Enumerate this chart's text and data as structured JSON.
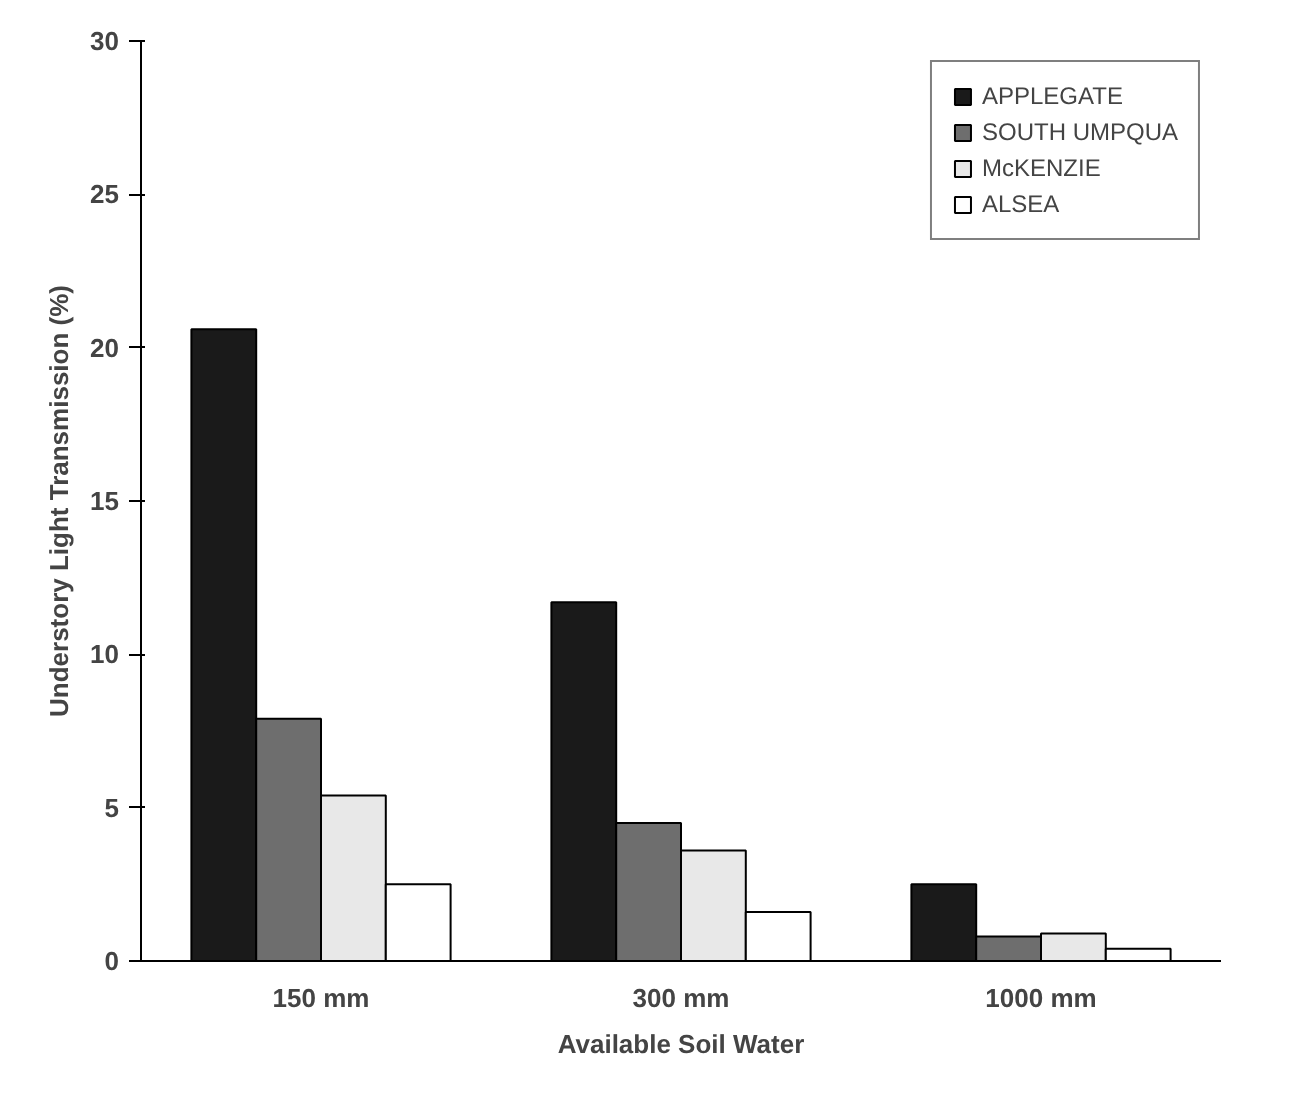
{
  "chart_data": {
    "type": "bar",
    "xlabel": "Available Soil Water",
    "ylabel": "Understory Light Transmission (%)",
    "categories": [
      "150 mm",
      "300 mm",
      "1000 mm"
    ],
    "series": [
      {
        "name": "APPLEGATE",
        "color": "#1a1a1a",
        "values": [
          20.6,
          11.7,
          2.5
        ]
      },
      {
        "name": "SOUTH UMPQUA",
        "color": "#6e6e6e",
        "values": [
          7.9,
          4.5,
          0.8
        ]
      },
      {
        "name": "McKENZIE",
        "color": "#e8e8e8",
        "values": [
          5.4,
          3.6,
          0.9
        ]
      },
      {
        "name": "ALSEA",
        "color": "#ffffff",
        "values": [
          2.5,
          1.6,
          0.4
        ]
      }
    ],
    "ylim": [
      0,
      30
    ],
    "yticks": [
      0,
      5,
      10,
      15,
      20,
      25,
      30
    ],
    "grid": false,
    "legend": "top right"
  }
}
